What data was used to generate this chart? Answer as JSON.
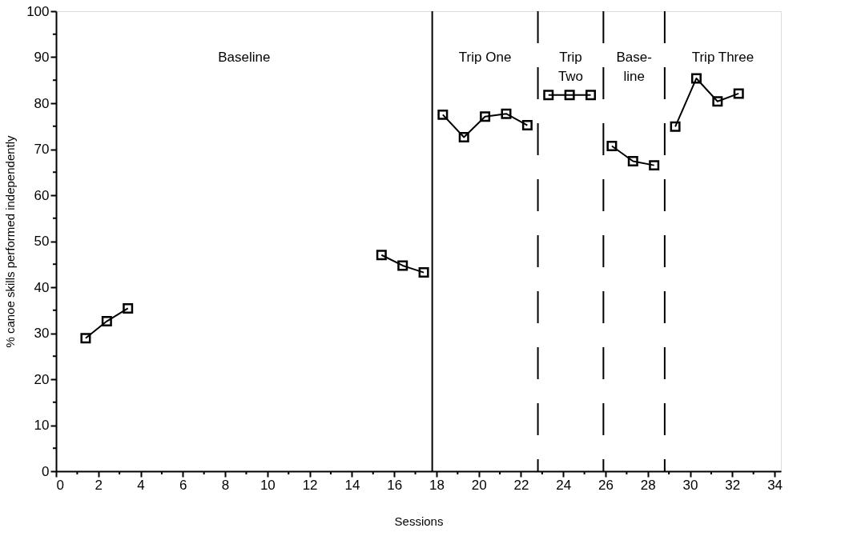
{
  "chart_data": {
    "type": "line",
    "xlabel": "Sessions",
    "ylabel": "% canoe skills performed independently",
    "x": [
      1.4,
      2.4,
      3.4,
      10,
      15.4,
      16.4,
      17.4,
      17.9,
      18.3,
      19.3,
      20.3,
      21.3,
      22.3,
      22.8,
      23.3,
      24.3,
      25.3,
      25.9,
      26.3,
      27.3,
      28.3,
      28.8,
      29.3,
      30.3,
      31.3,
      32.3
    ],
    "series": [
      {
        "color": "#000000",
        "values": [
          28.9,
          32.6,
          35.4,
          null,
          47.0,
          44.7,
          43.2,
          null,
          77.5,
          72.6,
          77.1,
          77.7,
          75.2,
          null,
          81.8,
          81.8,
          81.8,
          null,
          70.7,
          67.4,
          66.5,
          null,
          74.9,
          85.4,
          80.4,
          82.1
        ]
      }
    ],
    "marker": "square",
    "line_style": "solid",
    "grid": false,
    "xlim": [
      0,
      34.3
    ],
    "ylim": [
      0,
      100
    ],
    "xticks": [
      0,
      {
        "value": 1,
        "label": null
      },
      2,
      {
        "value": 3,
        "label": null
      },
      4,
      {
        "value": 5,
        "label": null
      },
      6,
      {
        "value": 7,
        "label": null
      },
      8,
      {
        "value": 9,
        "label": null
      },
      10,
      {
        "value": 11,
        "label": null
      },
      12,
      {
        "value": 13,
        "label": null
      },
      14,
      {
        "value": 15,
        "label": null
      },
      16,
      {
        "value": 17,
        "label": null
      },
      18,
      {
        "value": 19,
        "label": null
      },
      20,
      {
        "value": 21,
        "label": null
      },
      22,
      {
        "value": 23,
        "label": null
      },
      24,
      {
        "value": 25,
        "label": null
      },
      26,
      {
        "value": 27,
        "label": null
      },
      28,
      {
        "value": 29,
        "label": null
      },
      30,
      {
        "value": 31,
        "label": null
      },
      32,
      {
        "value": 33,
        "label": null
      },
      34
    ],
    "yticks": [
      0,
      {
        "value": 5,
        "label": null
      },
      10,
      {
        "value": 15,
        "label": null
      },
      20,
      {
        "value": 25,
        "label": null
      },
      30,
      {
        "value": 35,
        "label": null
      },
      40,
      {
        "value": 45,
        "label": null
      },
      50,
      {
        "value": 55,
        "label": null
      },
      60,
      {
        "value": 65,
        "label": null
      },
      70,
      {
        "value": 75,
        "label": null
      },
      80,
      {
        "value": 85,
        "label": null
      },
      90,
      {
        "value": 95,
        "label": null
      },
      100
    ],
    "ref_lines": [
      {
        "axis": "x",
        "value": 17.8,
        "line_style": "solid",
        "color": "#000000"
      },
      {
        "axis": "x",
        "value": 22.8,
        "line_style": "dashed",
        "color": "#000000"
      },
      {
        "axis": "x",
        "value": 25.9,
        "line_style": "dashed",
        "color": "#000000"
      },
      {
        "axis": "x",
        "value": 28.8,
        "line_style": "dashed",
        "color": "#000000"
      }
    ],
    "annotations": [
      "Baseline",
      "Trip One",
      "Trip\nTwo",
      "Base-\nline",
      "Trip Three"
    ]
  }
}
